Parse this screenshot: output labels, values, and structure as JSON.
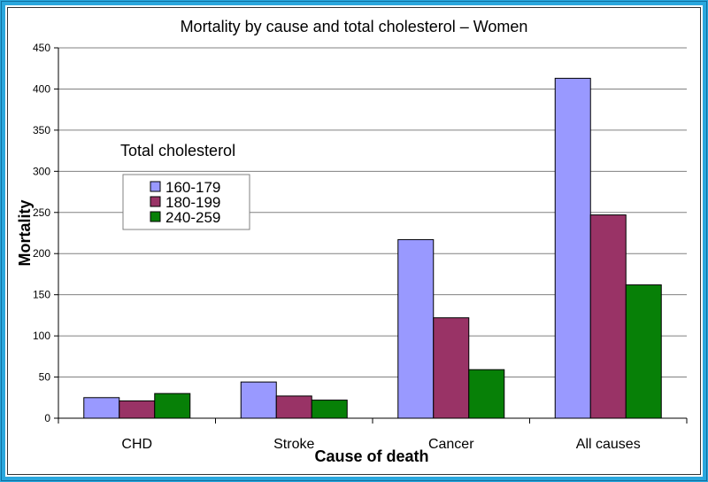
{
  "chart_data": {
    "type": "bar",
    "title": "Mortality by cause and total cholesterol – Women",
    "xlabel": "Cause of death",
    "ylabel": "Mortality",
    "categories": [
      "CHD",
      "Stroke",
      "Cancer",
      "All causes"
    ],
    "ylim": [
      0,
      450
    ],
    "yticks": [
      0,
      50,
      100,
      150,
      200,
      250,
      300,
      350,
      400,
      450
    ],
    "grid": true,
    "legend_title": "Total cholesterol",
    "legend_position": "upper-left",
    "series": [
      {
        "name": "160-179",
        "color": "#9999ff",
        "values": [
          25,
          44,
          217,
          413
        ]
      },
      {
        "name": "180-199",
        "color": "#993366",
        "values": [
          21,
          27,
          122,
          247
        ]
      },
      {
        "name": "240-259",
        "color": "#078007",
        "values": [
          30,
          22,
          59,
          162
        ]
      }
    ]
  }
}
